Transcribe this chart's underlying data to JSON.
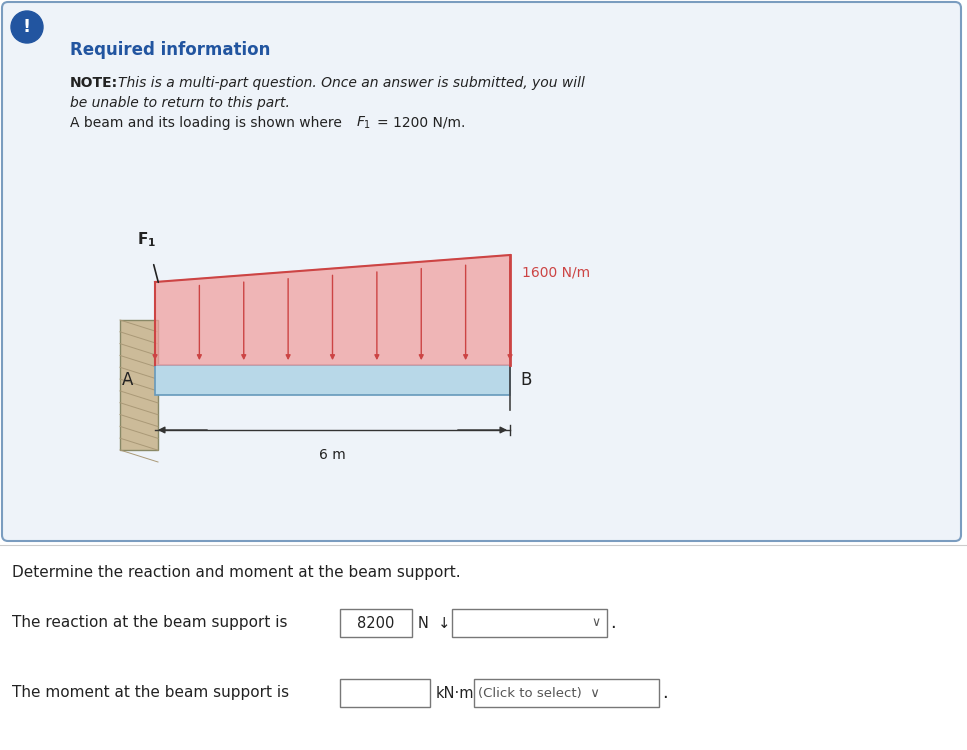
{
  "bg_color": "#ffffff",
  "box_bg": "#eef3f9",
  "box_border": "#7a9cbf",
  "title_text": "Required information",
  "title_color": "#2255a0",
  "note_bold": "NOTE:",
  "note_italic1": " This is a multi-part question. Once an answer is submitted, you will",
  "note_italic2": "be unable to return to this part.",
  "note_line3a": "A beam and its loading is shown where ",
  "note_line3b": "= 1200 N/m.",
  "beam_color": "#b8d8e8",
  "beam_border_color": "#6699bb",
  "wall_color": "#ccbb99",
  "wall_hatch_color": "#aa9977",
  "load_line_color": "#cc4444",
  "load_fill_color": "#f0a0a0",
  "arrow_color": "#cc4444",
  "dim_color": "#333333",
  "exclamation_color": "#2255a0",
  "num_arrows": 9,
  "bottom_text1": "Determine the reaction and moment at the beam support.",
  "bottom_text2": "The reaction at the beam support is",
  "bottom_text3": "The moment at the beam support is",
  "answer1": "8200",
  "unit1": "N",
  "unit2": "kN·m"
}
